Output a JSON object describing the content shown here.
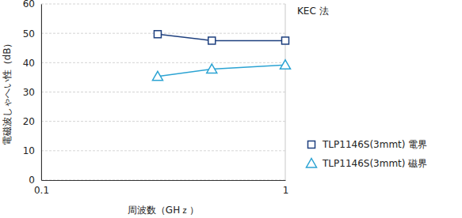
{
  "chart_data": {
    "type": "line",
    "annotations": [
      "KEC 法"
    ],
    "x_label": "周波数（GHｚ）",
    "y_label": "電磁波しゃへい性（dB）",
    "x": [
      0.3,
      0.5,
      1
    ],
    "series": [
      {
        "name": "TLP1146S(3mmt) 電界",
        "color": "#1d3f7e",
        "marker": "square",
        "values": [
          49.7,
          47.5,
          47.5
        ]
      },
      {
        "name": "TLP1146S(3mmt) 磁界",
        "color": "#2ba3d3",
        "marker": "triangle",
        "values": [
          35.3,
          37.8,
          39.2
        ]
      }
    ],
    "log": "x",
    "xlim": [
      0.1,
      1
    ],
    "xticks": [
      0.1,
      1
    ],
    "ylim": [
      0,
      60
    ],
    "yticks": [
      0,
      10,
      20,
      30,
      40,
      50,
      60
    ],
    "grid": true,
    "legend": "lower right"
  }
}
